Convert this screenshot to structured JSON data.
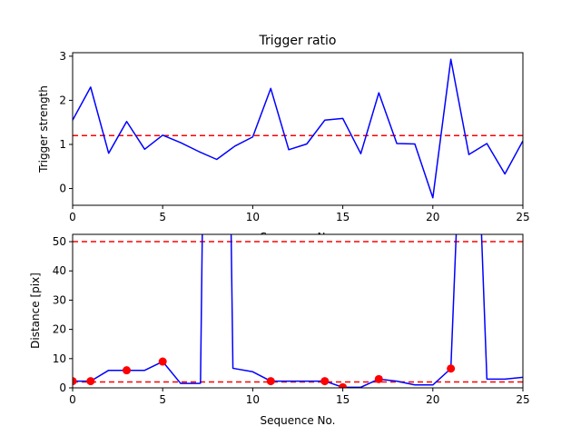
{
  "chart_data": [
    {
      "type": "line",
      "title": "Trigger ratio",
      "xlabel": "Sequence No.",
      "ylabel": "Trigger strength",
      "xlim": [
        0,
        25
      ],
      "ylim": [
        -0.38,
        3.08
      ],
      "xticks": [
        0,
        5,
        10,
        15,
        20,
        25
      ],
      "yticks": [
        0,
        1,
        2,
        3
      ],
      "grid": false,
      "series": [
        {
          "color": "#0000ff",
          "x": [
            0,
            1,
            2,
            3,
            4,
            5,
            6,
            7,
            8,
            9,
            10,
            11,
            12,
            13,
            14,
            15,
            16,
            17,
            18,
            19,
            20,
            21,
            22,
            23,
            24,
            25
          ],
          "values": [
            1.55,
            2.3,
            0.8,
            1.52,
            0.89,
            1.21,
            1.04,
            0.84,
            0.66,
            0.96,
            1.17,
            2.27,
            0.88,
            1.01,
            1.55,
            1.59,
            0.79,
            2.17,
            1.02,
            1.01,
            -0.21,
            2.93,
            0.77,
            1.02,
            0.33,
            1.08
          ]
        }
      ],
      "reference_lines": [
        {
          "y": 1.2,
          "color": "#ff0000",
          "style": "dashed"
        }
      ]
    },
    {
      "type": "line",
      "title": "",
      "xlabel": "Sequence No.",
      "ylabel": "Distance [pix]",
      "xlim": [
        0,
        25
      ],
      "ylim": [
        0,
        52.5
      ],
      "xticks": [
        0,
        5,
        10,
        15,
        20,
        25
      ],
      "yticks": [
        0,
        10,
        20,
        30,
        40,
        50
      ],
      "grid": false,
      "series": [
        {
          "color": "#0000ff",
          "x": [
            0,
            1,
            2,
            3,
            4,
            5,
            6,
            7,
            7.1,
            7.2,
            8.8,
            8.9,
            10,
            11,
            12,
            13,
            14,
            15,
            16,
            17,
            18,
            19,
            20,
            21,
            21.3,
            22.7,
            23,
            24,
            25
          ],
          "values": [
            2.3,
            2.3,
            6.0,
            6.0,
            6.0,
            9.0,
            1.5,
            1.5,
            1.6,
            53,
            53,
            6.7,
            5.5,
            2.3,
            2.3,
            2.3,
            2.3,
            0.2,
            0.2,
            3.0,
            2.3,
            1.0,
            1.0,
            6.6,
            53,
            53,
            3.0,
            3.0,
            3.6
          ]
        }
      ],
      "markers": {
        "color": "#ff0000",
        "x": [
          0,
          1,
          3,
          5,
          11,
          14,
          15,
          17,
          21
        ],
        "values": [
          2.3,
          2.3,
          6.0,
          9.0,
          2.3,
          2.3,
          0.2,
          3.0,
          6.6
        ]
      },
      "reference_lines": [
        {
          "y": 50,
          "color": "#ff0000",
          "style": "dashed"
        },
        {
          "y": 2,
          "color": "#ff0000",
          "style": "dashed"
        }
      ]
    }
  ]
}
